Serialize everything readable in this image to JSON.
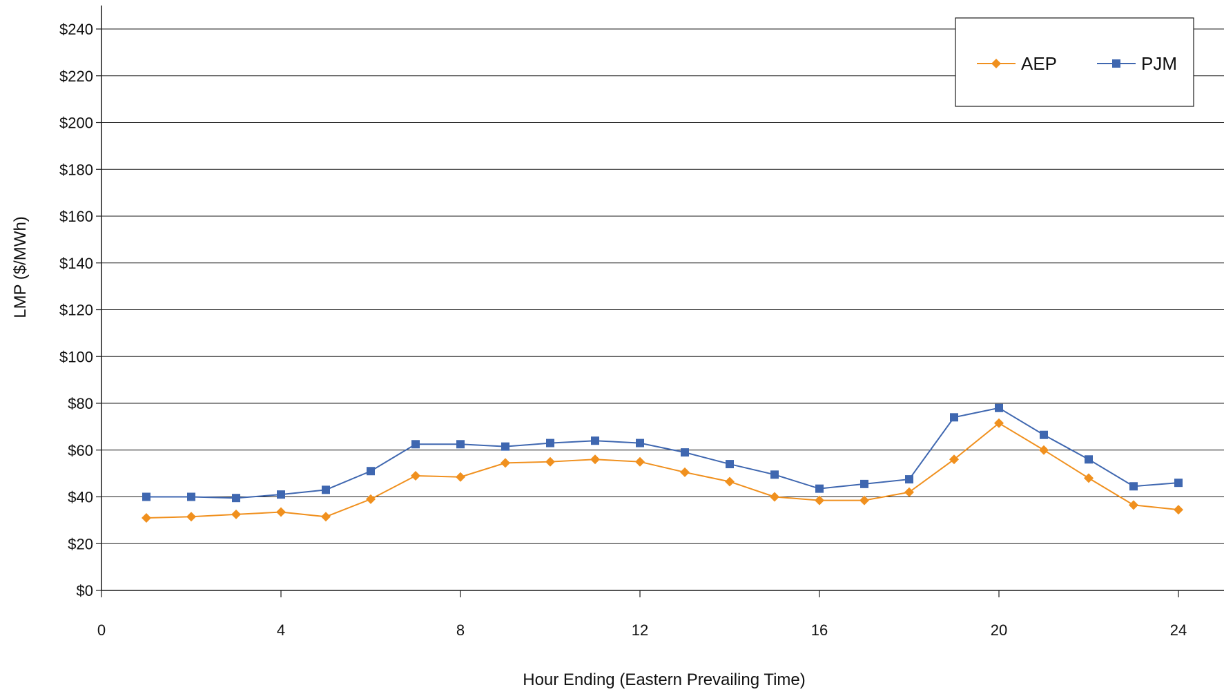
{
  "chart_data": {
    "type": "line",
    "title": "",
    "xlabel": "Hour Ending (Eastern Prevailing Time)",
    "ylabel": "LMP ($/MWh)",
    "xlim": [
      0,
      24
    ],
    "ylim": [
      0,
      240
    ],
    "x_ticks": [
      0,
      4,
      8,
      12,
      16,
      20,
      24
    ],
    "x_tick_labels": [
      "0",
      "4",
      "8",
      "12",
      "16",
      "20",
      "24"
    ],
    "y_ticks": [
      0,
      20,
      40,
      60,
      80,
      100,
      120,
      140,
      160,
      180,
      200,
      220,
      240
    ],
    "y_tick_labels": [
      "$0",
      "$20",
      "$40",
      "$60",
      "$80",
      "$100",
      "$120",
      "$140",
      "$160",
      "$180",
      "$200",
      "$220",
      "$240"
    ],
    "grid": "horizontal",
    "legend_position": "top-right",
    "x": [
      1,
      2,
      3,
      4,
      5,
      6,
      7,
      8,
      9,
      10,
      11,
      12,
      13,
      14,
      15,
      16,
      17,
      18,
      19,
      20,
      21,
      22,
      23,
      24
    ],
    "series": [
      {
        "name": "AEP",
        "color": "#F0901E",
        "marker": "diamond",
        "values": [
          31,
          31.5,
          32.5,
          33.5,
          31.5,
          39,
          49,
          48.5,
          54.5,
          55,
          56,
          55,
          50.5,
          46.5,
          40,
          38.5,
          38.5,
          42,
          56,
          71.5,
          60,
          48,
          36.5,
          34.5
        ]
      },
      {
        "name": "PJM",
        "color": "#3F67B0",
        "marker": "square",
        "values": [
          40,
          40,
          39.5,
          41,
          43,
          51,
          62.5,
          62.5,
          61.5,
          63,
          64,
          63,
          59,
          54,
          49.5,
          43.5,
          45.5,
          47.5,
          74,
          78,
          66.5,
          56,
          44.5,
          46
        ]
      }
    ]
  }
}
